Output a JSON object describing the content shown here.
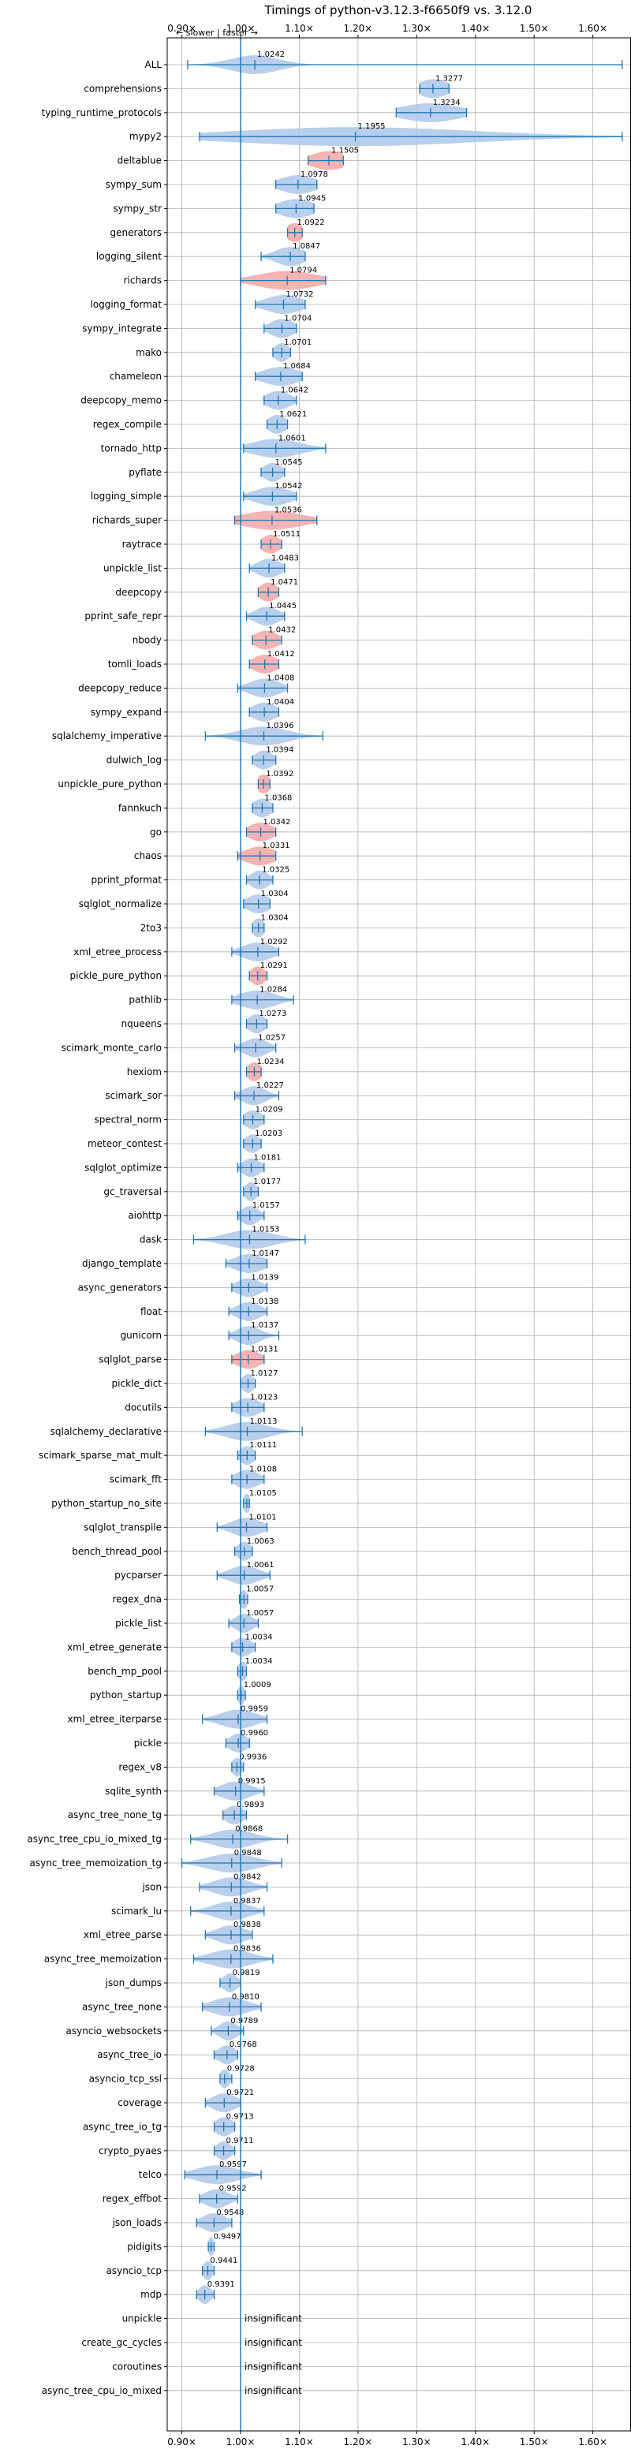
{
  "chart_data": {
    "type": "violin",
    "title": "Timings of python-v3.12.3-f6650f9 vs. 3.12.0",
    "direction_note": "← slower | faster →",
    "x_ticks": [
      "0.90×",
      "1.00×",
      "1.10×",
      "1.20×",
      "1.30×",
      "1.40×",
      "1.50×",
      "1.60×"
    ],
    "x_tick_values": [
      0.9,
      1.0,
      1.1,
      1.2,
      1.3,
      1.4,
      1.5,
      1.6
    ],
    "xlim": [
      0.875,
      1.665
    ],
    "reference_line": 1.0,
    "grid": true,
    "colors": {
      "faster": "#aec7e8",
      "slower": "#f4a6a6",
      "bars": "#1f77b4",
      "grid": "#b0b0b0"
    },
    "benchmarks": [
      {
        "name": "ALL",
        "value": 1.0242,
        "label": "1.0242",
        "lo": 0.91,
        "hi": 1.65,
        "spread": 0.04,
        "color": "blue"
      },
      {
        "name": "comprehensions",
        "value": 1.3277,
        "label": "1.3277",
        "lo": 1.305,
        "hi": 1.355,
        "spread": 0.025,
        "color": "blue"
      },
      {
        "name": "typing_runtime_protocols",
        "value": 1.3234,
        "label": "1.3234",
        "lo": 1.265,
        "hi": 1.385,
        "spread": 0.05,
        "color": "blue"
      },
      {
        "name": "mypy2",
        "value": 1.1955,
        "label": "1.1955",
        "lo": 0.93,
        "hi": 1.65,
        "spread": 0.2,
        "color": "blue"
      },
      {
        "name": "deltablue",
        "value": 1.1505,
        "label": "1.1505",
        "lo": 1.115,
        "hi": 1.175,
        "spread": 0.03,
        "color": "red"
      },
      {
        "name": "sympy_sum",
        "value": 1.0978,
        "label": "1.0978",
        "lo": 1.06,
        "hi": 1.13,
        "spread": 0.03,
        "color": "blue"
      },
      {
        "name": "sympy_str",
        "value": 1.0945,
        "label": "1.0945",
        "lo": 1.06,
        "hi": 1.125,
        "spread": 0.03,
        "color": "blue"
      },
      {
        "name": "generators",
        "value": 1.0922,
        "label": "1.0922",
        "lo": 1.08,
        "hi": 1.105,
        "spread": 0.015,
        "color": "red"
      },
      {
        "name": "logging_silent",
        "value": 1.0847,
        "label": "1.0847",
        "lo": 1.035,
        "hi": 1.11,
        "spread": 0.025,
        "color": "blue"
      },
      {
        "name": "richards",
        "value": 1.0794,
        "label": "1.0794",
        "lo": 1.0,
        "hi": 1.145,
        "spread": 0.05,
        "color": "red"
      },
      {
        "name": "logging_format",
        "value": 1.0732,
        "label": "1.0732",
        "lo": 1.025,
        "hi": 1.11,
        "spread": 0.03,
        "color": "blue"
      },
      {
        "name": "sympy_integrate",
        "value": 1.0704,
        "label": "1.0704",
        "lo": 1.04,
        "hi": 1.095,
        "spread": 0.02,
        "color": "blue"
      },
      {
        "name": "mako",
        "value": 1.0701,
        "label": "1.0701",
        "lo": 1.055,
        "hi": 1.085,
        "spread": 0.012,
        "color": "blue"
      },
      {
        "name": "chameleon",
        "value": 1.0684,
        "label": "1.0684",
        "lo": 1.025,
        "hi": 1.105,
        "spread": 0.03,
        "color": "blue"
      },
      {
        "name": "deepcopy_memo",
        "value": 1.0642,
        "label": "1.0642",
        "lo": 1.04,
        "hi": 1.095,
        "spread": 0.02,
        "color": "blue"
      },
      {
        "name": "regex_compile",
        "value": 1.0621,
        "label": "1.0621",
        "lo": 1.045,
        "hi": 1.08,
        "spread": 0.015,
        "color": "blue"
      },
      {
        "name": "tornado_http",
        "value": 1.0601,
        "label": "1.0601",
        "lo": 1.005,
        "hi": 1.145,
        "spread": 0.04,
        "color": "blue"
      },
      {
        "name": "pyflate",
        "value": 1.0545,
        "label": "1.0545",
        "lo": 1.035,
        "hi": 1.075,
        "spread": 0.015,
        "color": "blue"
      },
      {
        "name": "logging_simple",
        "value": 1.0542,
        "label": "1.0542",
        "lo": 1.005,
        "hi": 1.095,
        "spread": 0.03,
        "color": "blue"
      },
      {
        "name": "richards_super",
        "value": 1.0536,
        "label": "1.0536",
        "lo": 0.99,
        "hi": 1.13,
        "spread": 0.05,
        "color": "red"
      },
      {
        "name": "raytrace",
        "value": 1.0511,
        "label": "1.0511",
        "lo": 1.035,
        "hi": 1.07,
        "spread": 0.015,
        "color": "red"
      },
      {
        "name": "unpickle_list",
        "value": 1.0483,
        "label": "1.0483",
        "lo": 1.015,
        "hi": 1.075,
        "spread": 0.02,
        "color": "blue"
      },
      {
        "name": "deepcopy",
        "value": 1.0471,
        "label": "1.0471",
        "lo": 1.03,
        "hi": 1.065,
        "spread": 0.015,
        "color": "red"
      },
      {
        "name": "pprint_safe_repr",
        "value": 1.0445,
        "label": "1.0445",
        "lo": 1.01,
        "hi": 1.075,
        "spread": 0.02,
        "color": "blue"
      },
      {
        "name": "nbody",
        "value": 1.0432,
        "label": "1.0432",
        "lo": 1.02,
        "hi": 1.07,
        "spread": 0.02,
        "color": "red"
      },
      {
        "name": "tomli_loads",
        "value": 1.0412,
        "label": "1.0412",
        "lo": 1.015,
        "hi": 1.065,
        "spread": 0.02,
        "color": "red"
      },
      {
        "name": "deepcopy_reduce",
        "value": 1.0408,
        "label": "1.0408",
        "lo": 0.995,
        "hi": 1.08,
        "spread": 0.025,
        "color": "blue"
      },
      {
        "name": "sympy_expand",
        "value": 1.0404,
        "label": "1.0404",
        "lo": 1.015,
        "hi": 1.065,
        "spread": 0.02,
        "color": "blue"
      },
      {
        "name": "sqlalchemy_imperative",
        "value": 1.0396,
        "label": "1.0396",
        "lo": 0.94,
        "hi": 1.14,
        "spread": 0.04,
        "color": "blue"
      },
      {
        "name": "dulwich_log",
        "value": 1.0394,
        "label": "1.0394",
        "lo": 1.02,
        "hi": 1.06,
        "spread": 0.015,
        "color": "blue"
      },
      {
        "name": "unpickle_pure_python",
        "value": 1.0392,
        "label": "1.0392",
        "lo": 1.03,
        "hi": 1.05,
        "spread": 0.012,
        "color": "red"
      },
      {
        "name": "fannkuch",
        "value": 1.0368,
        "label": "1.0368",
        "lo": 1.02,
        "hi": 1.055,
        "spread": 0.015,
        "color": "blue"
      },
      {
        "name": "go",
        "value": 1.0342,
        "label": "1.0342",
        "lo": 1.01,
        "hi": 1.06,
        "spread": 0.02,
        "color": "red"
      },
      {
        "name": "chaos",
        "value": 1.0331,
        "label": "1.0331",
        "lo": 0.995,
        "hi": 1.06,
        "spread": 0.025,
        "color": "red"
      },
      {
        "name": "pprint_pformat",
        "value": 1.0325,
        "label": "1.0325",
        "lo": 1.01,
        "hi": 1.055,
        "spread": 0.015,
        "color": "blue"
      },
      {
        "name": "sqlglot_normalize",
        "value": 1.0304,
        "label": "1.0304",
        "lo": 1.005,
        "hi": 1.05,
        "spread": 0.02,
        "color": "blue"
      },
      {
        "name": "2to3",
        "value": 1.0304,
        "label": "1.0304",
        "lo": 1.02,
        "hi": 1.04,
        "spread": 0.01,
        "color": "blue"
      },
      {
        "name": "xml_etree_process",
        "value": 1.0292,
        "label": "1.0292",
        "lo": 0.985,
        "hi": 1.065,
        "spread": 0.025,
        "color": "blue"
      },
      {
        "name": "pickle_pure_python",
        "value": 1.0291,
        "label": "1.0291",
        "lo": 1.015,
        "hi": 1.045,
        "spread": 0.012,
        "color": "red"
      },
      {
        "name": "pathlib",
        "value": 1.0284,
        "label": "1.0284",
        "lo": 0.985,
        "hi": 1.09,
        "spread": 0.03,
        "color": "blue"
      },
      {
        "name": "nqueens",
        "value": 1.0273,
        "label": "1.0273",
        "lo": 1.01,
        "hi": 1.045,
        "spread": 0.015,
        "color": "blue"
      },
      {
        "name": "scimark_monte_carlo",
        "value": 1.0257,
        "label": "1.0257",
        "lo": 0.99,
        "hi": 1.06,
        "spread": 0.02,
        "color": "blue"
      },
      {
        "name": "hexiom",
        "value": 1.0234,
        "label": "1.0234",
        "lo": 1.01,
        "hi": 1.035,
        "spread": 0.012,
        "color": "red"
      },
      {
        "name": "scimark_sor",
        "value": 1.0227,
        "label": "1.0227",
        "lo": 0.99,
        "hi": 1.065,
        "spread": 0.02,
        "color": "blue"
      },
      {
        "name": "spectral_norm",
        "value": 1.0209,
        "label": "1.0209",
        "lo": 1.005,
        "hi": 1.04,
        "spread": 0.015,
        "color": "blue"
      },
      {
        "name": "meteor_contest",
        "value": 1.0203,
        "label": "1.0203",
        "lo": 1.005,
        "hi": 1.035,
        "spread": 0.012,
        "color": "blue"
      },
      {
        "name": "sqlglot_optimize",
        "value": 1.0181,
        "label": "1.0181",
        "lo": 0.995,
        "hi": 1.04,
        "spread": 0.015,
        "color": "blue"
      },
      {
        "name": "gc_traversal",
        "value": 1.0177,
        "label": "1.0177",
        "lo": 1.005,
        "hi": 1.03,
        "spread": 0.01,
        "color": "blue"
      },
      {
        "name": "aiohttp",
        "value": 1.0157,
        "label": "1.0157",
        "lo": 0.995,
        "hi": 1.04,
        "spread": 0.015,
        "color": "blue"
      },
      {
        "name": "dask",
        "value": 1.0153,
        "label": "1.0153",
        "lo": 0.92,
        "hi": 1.11,
        "spread": 0.04,
        "color": "blue"
      },
      {
        "name": "django_template",
        "value": 1.0147,
        "label": "1.0147",
        "lo": 0.975,
        "hi": 1.045,
        "spread": 0.025,
        "color": "blue"
      },
      {
        "name": "async_generators",
        "value": 1.0139,
        "label": "1.0139",
        "lo": 0.985,
        "hi": 1.045,
        "spread": 0.02,
        "color": "blue"
      },
      {
        "name": "float",
        "value": 1.0138,
        "label": "1.0138",
        "lo": 0.98,
        "hi": 1.045,
        "spread": 0.02,
        "color": "blue"
      },
      {
        "name": "gunicorn",
        "value": 1.0137,
        "label": "1.0137",
        "lo": 0.98,
        "hi": 1.065,
        "spread": 0.02,
        "color": "blue"
      },
      {
        "name": "sqlglot_parse",
        "value": 1.0131,
        "label": "1.0131",
        "lo": 0.985,
        "hi": 1.04,
        "spread": 0.02,
        "color": "red"
      },
      {
        "name": "pickle_dict",
        "value": 1.0127,
        "label": "1.0127",
        "lo": 1.0,
        "hi": 1.025,
        "spread": 0.01,
        "color": "blue"
      },
      {
        "name": "docutils",
        "value": 1.0123,
        "label": "1.0123",
        "lo": 0.985,
        "hi": 1.04,
        "spread": 0.02,
        "color": "blue"
      },
      {
        "name": "sqlalchemy_declarative",
        "value": 1.0113,
        "label": "1.0113",
        "lo": 0.94,
        "hi": 1.105,
        "spread": 0.035,
        "color": "blue"
      },
      {
        "name": "scimark_sparse_mat_mult",
        "value": 1.0111,
        "label": "1.0111",
        "lo": 0.995,
        "hi": 1.025,
        "spread": 0.012,
        "color": "blue"
      },
      {
        "name": "scimark_fft",
        "value": 1.0108,
        "label": "1.0108",
        "lo": 0.985,
        "hi": 1.04,
        "spread": 0.02,
        "color": "blue"
      },
      {
        "name": "python_startup_no_site",
        "value": 1.0105,
        "label": "1.0105",
        "lo": 1.005,
        "hi": 1.015,
        "spread": 0.006,
        "color": "blue"
      },
      {
        "name": "sqlglot_transpile",
        "value": 1.0101,
        "label": "1.0101",
        "lo": 0.96,
        "hi": 1.045,
        "spread": 0.025,
        "color": "blue"
      },
      {
        "name": "bench_thread_pool",
        "value": 1.0063,
        "label": "1.0063",
        "lo": 0.99,
        "hi": 1.02,
        "spread": 0.012,
        "color": "blue"
      },
      {
        "name": "pycparser",
        "value": 1.0061,
        "label": "1.0061",
        "lo": 0.96,
        "hi": 1.05,
        "spread": 0.025,
        "color": "blue"
      },
      {
        "name": "regex_dna",
        "value": 1.0057,
        "label": "1.0057",
        "lo": 0.998,
        "hi": 1.012,
        "spread": 0.006,
        "color": "blue"
      },
      {
        "name": "pickle_list",
        "value": 1.0057,
        "label": "1.0057",
        "lo": 0.98,
        "hi": 1.03,
        "spread": 0.015,
        "color": "blue"
      },
      {
        "name": "xml_etree_generate",
        "value": 1.0034,
        "label": "1.0034",
        "lo": 0.985,
        "hi": 1.025,
        "spread": 0.015,
        "color": "blue"
      },
      {
        "name": "bench_mp_pool",
        "value": 1.0034,
        "label": "1.0034",
        "lo": 0.995,
        "hi": 1.01,
        "spread": 0.008,
        "color": "blue"
      },
      {
        "name": "python_startup",
        "value": 1.0009,
        "label": "1.0009",
        "lo": 0.995,
        "hi": 1.008,
        "spread": 0.006,
        "color": "blue"
      },
      {
        "name": "xml_etree_iterparse",
        "value": 0.9959,
        "label": "0.9959",
        "lo": 0.935,
        "hi": 1.045,
        "spread": 0.03,
        "color": "blue"
      },
      {
        "name": "pickle",
        "value": 0.996,
        "label": "0.9960",
        "lo": 0.975,
        "hi": 1.015,
        "spread": 0.015,
        "color": "blue"
      },
      {
        "name": "regex_v8",
        "value": 0.9936,
        "label": "0.9936",
        "lo": 0.985,
        "hi": 1.005,
        "spread": 0.008,
        "color": "blue"
      },
      {
        "name": "sqlite_synth",
        "value": 0.9915,
        "label": "0.9915",
        "lo": 0.955,
        "hi": 1.04,
        "spread": 0.025,
        "color": "blue"
      },
      {
        "name": "async_tree_none_tg",
        "value": 0.9893,
        "label": "0.9893",
        "lo": 0.97,
        "hi": 1.01,
        "spread": 0.015,
        "color": "blue"
      },
      {
        "name": "async_tree_cpu_io_mixed_tg",
        "value": 0.9868,
        "label": "0.9868",
        "lo": 0.915,
        "hi": 1.08,
        "spread": 0.035,
        "color": "blue"
      },
      {
        "name": "async_tree_memoization_tg",
        "value": 0.9848,
        "label": "0.9848",
        "lo": 0.9,
        "hi": 1.07,
        "spread": 0.04,
        "color": "blue"
      },
      {
        "name": "json",
        "value": 0.9842,
        "label": "0.9842",
        "lo": 0.93,
        "hi": 1.045,
        "spread": 0.03,
        "color": "blue"
      },
      {
        "name": "scimark_lu",
        "value": 0.9837,
        "label": "0.9837",
        "lo": 0.915,
        "hi": 1.04,
        "spread": 0.03,
        "color": "blue"
      },
      {
        "name": "xml_etree_parse",
        "value": 0.9838,
        "label": "0.9838",
        "lo": 0.94,
        "hi": 1.02,
        "spread": 0.025,
        "color": "blue"
      },
      {
        "name": "async_tree_memoization",
        "value": 0.9836,
        "label": "0.9836",
        "lo": 0.92,
        "hi": 1.055,
        "spread": 0.035,
        "color": "blue"
      },
      {
        "name": "json_dumps",
        "value": 0.9819,
        "label": "0.9819",
        "lo": 0.965,
        "hi": 1.0,
        "spread": 0.012,
        "color": "blue"
      },
      {
        "name": "async_tree_none",
        "value": 0.981,
        "label": "0.9810",
        "lo": 0.935,
        "hi": 1.035,
        "spread": 0.03,
        "color": "blue"
      },
      {
        "name": "asyncio_websockets",
        "value": 0.9789,
        "label": "0.9789",
        "lo": 0.95,
        "hi": 1.005,
        "spread": 0.015,
        "color": "blue"
      },
      {
        "name": "async_tree_io",
        "value": 0.9768,
        "label": "0.9768",
        "lo": 0.955,
        "hi": 0.995,
        "spread": 0.015,
        "color": "blue"
      },
      {
        "name": "asyncio_tcp_ssl",
        "value": 0.9728,
        "label": "0.9728",
        "lo": 0.965,
        "hi": 0.985,
        "spread": 0.008,
        "color": "blue"
      },
      {
        "name": "coverage",
        "value": 0.9721,
        "label": "0.9721",
        "lo": 0.94,
        "hi": 1.0,
        "spread": 0.02,
        "color": "blue"
      },
      {
        "name": "async_tree_io_tg",
        "value": 0.9713,
        "label": "0.9713",
        "lo": 0.955,
        "hi": 0.99,
        "spread": 0.015,
        "color": "blue"
      },
      {
        "name": "crypto_pyaes",
        "value": 0.9711,
        "label": "0.9711",
        "lo": 0.955,
        "hi": 0.99,
        "spread": 0.012,
        "color": "blue"
      },
      {
        "name": "telco",
        "value": 0.9597,
        "label": "0.9597",
        "lo": 0.905,
        "hi": 1.035,
        "spread": 0.035,
        "color": "blue"
      },
      {
        "name": "regex_effbot",
        "value": 0.9592,
        "label": "0.9592",
        "lo": 0.93,
        "hi": 0.995,
        "spread": 0.02,
        "color": "blue"
      },
      {
        "name": "json_loads",
        "value": 0.9548,
        "label": "0.9548",
        "lo": 0.925,
        "hi": 0.985,
        "spread": 0.02,
        "color": "blue"
      },
      {
        "name": "pidigits",
        "value": 0.9497,
        "label": "0.9497",
        "lo": 0.945,
        "hi": 0.955,
        "spread": 0.005,
        "color": "blue"
      },
      {
        "name": "asyncio_tcp",
        "value": 0.9441,
        "label": "0.9441",
        "lo": 0.935,
        "hi": 0.955,
        "spread": 0.008,
        "color": "blue"
      },
      {
        "name": "mdp",
        "value": 0.9391,
        "label": "0.9391",
        "lo": 0.925,
        "hi": 0.955,
        "spread": 0.01,
        "color": "blue"
      },
      {
        "name": "unpickle",
        "value": null,
        "label": "insignificant"
      },
      {
        "name": "create_gc_cycles",
        "value": null,
        "label": "insignificant"
      },
      {
        "name": "coroutines",
        "value": null,
        "label": "insignificant"
      },
      {
        "name": "async_tree_cpu_io_mixed",
        "value": null,
        "label": "insignificant"
      }
    ]
  }
}
